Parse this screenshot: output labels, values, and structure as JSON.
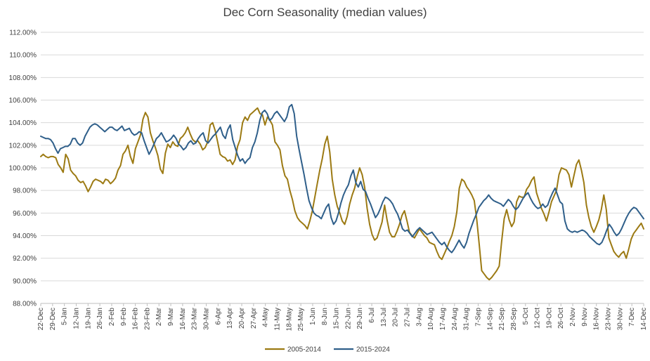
{
  "chart_data": {
    "type": "line",
    "title": "Dec Corn Seasonality (median values)",
    "xlabel": "",
    "ylabel": "",
    "ylim": [
      88,
      112
    ],
    "y_ticks": [
      "88.00%",
      "90.00%",
      "92.00%",
      "94.00%",
      "96.00%",
      "98.00%",
      "100.00%",
      "102.00%",
      "104.00%",
      "106.00%",
      "108.00%",
      "110.00%",
      "112.00%"
    ],
    "x_ticks": [
      "22-Dec",
      "29-Dec",
      "5-Jan",
      "12-Jan",
      "19-Jan",
      "26-Jan",
      "2-Feb",
      "9-Feb",
      "16-Feb",
      "23-Feb",
      "2-Mar",
      "9-Mar",
      "16-Mar",
      "23-Mar",
      "30-Mar",
      "6-Apr",
      "13-Apr",
      "20-Apr",
      "27-Apr",
      "4-May",
      "11-May",
      "18-May",
      "25-May",
      "1-Jun",
      "8-Jun",
      "15-Jun",
      "22-Jun",
      "29-Jun",
      "6-Jul",
      "13-Jul",
      "20-Jul",
      "27-Jul",
      "3-Aug",
      "10-Aug",
      "17-Aug",
      "24-Aug",
      "31-Aug",
      "7-Sep",
      "14-Sep",
      "21-Sep",
      "28-Sep",
      "5-Oct",
      "12-Oct",
      "19-Oct",
      "26-Oct",
      "2-Nov",
      "9-Nov",
      "16-Nov",
      "23-Nov",
      "30-Nov",
      "7-Dec",
      "14-Dec"
    ],
    "grid": true,
    "legend_position": "bottom",
    "series": [
      {
        "name": "2005-2014",
        "color": "#9C7A13",
        "values": [
          101.0,
          101.2,
          101.0,
          100.9,
          101.0,
          101.0,
          100.9,
          100.3,
          100.0,
          99.6,
          101.2,
          100.8,
          99.8,
          99.5,
          99.3,
          98.9,
          98.7,
          98.8,
          98.4,
          97.9,
          98.3,
          98.8,
          99.0,
          98.9,
          98.8,
          98.6,
          99.0,
          98.9,
          98.6,
          98.8,
          99.1,
          99.8,
          100.2,
          101.2,
          101.5,
          102.0,
          101.0,
          100.4,
          101.7,
          102.3,
          102.9,
          104.3,
          104.9,
          104.5,
          103.1,
          102.4,
          101.8,
          101.1,
          99.9,
          99.5,
          101.3,
          102.1,
          101.8,
          102.3,
          102.0,
          101.9,
          102.6,
          102.8,
          103.1,
          103.6,
          103.0,
          102.5,
          102.3,
          102.4,
          102.1,
          101.6,
          101.8,
          102.3,
          103.8,
          104.0,
          103.3,
          102.3,
          101.2,
          101.0,
          100.9,
          100.6,
          100.7,
          100.3,
          100.7,
          101.9,
          102.5,
          104.0,
          104.5,
          104.2,
          104.7,
          104.9,
          105.1,
          105.3,
          104.8,
          104.7,
          103.8,
          104.5,
          104.2,
          103.8,
          102.3,
          102.0,
          101.6,
          100.2,
          99.3,
          99.0,
          98.0,
          97.2,
          96.2,
          95.6,
          95.3,
          95.1,
          94.9,
          94.6,
          95.3,
          96.2,
          97.4,
          98.6,
          99.8,
          100.8,
          102.1,
          102.8,
          101.4,
          99.0,
          97.6,
          96.6,
          96.0,
          95.3,
          95.0,
          95.7,
          96.8,
          97.6,
          98.2,
          99.2,
          100.0,
          99.4,
          98.3,
          96.4,
          95.0,
          94.1,
          93.6,
          93.8,
          94.5,
          95.2,
          96.7,
          95.4,
          94.3,
          93.9,
          93.9,
          94.4,
          95.0,
          95.8,
          96.2,
          95.3,
          94.3,
          94.0,
          93.8,
          94.2,
          94.6,
          94.3,
          94.0,
          93.8,
          93.4,
          93.3,
          93.2,
          92.6,
          92.1,
          91.9,
          92.4,
          92.9,
          93.5,
          94.0,
          94.8,
          96.1,
          98.2,
          99.0,
          98.8,
          98.3,
          98.0,
          97.6,
          97.1,
          95.4,
          93.2,
          90.9,
          90.6,
          90.3,
          90.1,
          90.3,
          90.6,
          90.9,
          91.3,
          93.5,
          95.5,
          96.3,
          95.4,
          94.8,
          95.2,
          97.0,
          97.5,
          97.4,
          97.4,
          98.1,
          98.4,
          98.9,
          99.2,
          97.8,
          97.1,
          96.4,
          95.9,
          95.3,
          96.1,
          97.0,
          97.5,
          98.0,
          99.4,
          100.0,
          99.9,
          99.8,
          99.4,
          98.3,
          99.3,
          100.3,
          100.7,
          99.8,
          98.7,
          96.7,
          95.6,
          94.8,
          94.3,
          94.8,
          95.4,
          96.3,
          97.6,
          96.3,
          93.8,
          93.2,
          92.6,
          92.3,
          92.1,
          92.4,
          92.6,
          92.0,
          92.8,
          93.7,
          94.2,
          94.5,
          94.8,
          95.1,
          94.6
        ]
      },
      {
        "name": "2015-2024",
        "color": "#2F5F8A",
        "values": [
          102.8,
          102.7,
          102.6,
          102.6,
          102.5,
          102.2,
          101.7,
          101.3,
          101.7,
          101.8,
          101.9,
          101.9,
          102.1,
          102.6,
          102.6,
          102.2,
          102.0,
          102.2,
          102.8,
          103.2,
          103.6,
          103.8,
          103.9,
          103.8,
          103.6,
          103.4,
          103.2,
          103.4,
          103.6,
          103.6,
          103.4,
          103.3,
          103.5,
          103.7,
          103.3,
          103.4,
          103.5,
          103.1,
          102.9,
          103.0,
          103.2,
          103.1,
          102.4,
          101.8,
          101.2,
          101.6,
          102.1,
          102.6,
          102.8,
          103.1,
          102.7,
          102.3,
          102.4,
          102.6,
          102.9,
          102.6,
          102.1,
          101.9,
          101.6,
          101.8,
          102.2,
          102.4,
          102.1,
          102.2,
          102.6,
          102.9,
          103.1,
          102.4,
          102.2,
          102.5,
          102.8,
          103.0,
          103.3,
          103.6,
          102.9,
          102.6,
          103.4,
          103.8,
          102.5,
          101.8,
          101.1,
          100.6,
          100.8,
          100.4,
          100.7,
          100.9,
          101.8,
          102.3,
          103.1,
          104.2,
          104.9,
          105.1,
          104.8,
          104.2,
          104.4,
          104.8,
          105.0,
          104.7,
          104.4,
          104.1,
          104.5,
          105.4,
          105.6,
          104.8,
          102.8,
          101.6,
          100.5,
          99.4,
          98.2,
          97.1,
          96.5,
          96.0,
          95.8,
          95.7,
          95.5,
          96.0,
          96.5,
          96.8,
          95.6,
          95.0,
          95.3,
          96.0,
          96.9,
          97.6,
          98.1,
          98.5,
          99.3,
          99.8,
          98.7,
          98.3,
          98.8,
          98.1,
          97.9,
          97.3,
          96.8,
          96.2,
          95.6,
          95.9,
          96.4,
          97.0,
          97.4,
          97.3,
          97.1,
          96.8,
          96.3,
          95.9,
          95.3,
          94.6,
          94.4,
          94.5,
          94.2,
          93.9,
          94.2,
          94.5,
          94.7,
          94.5,
          94.3,
          94.1,
          94.2,
          94.3,
          94.0,
          93.7,
          93.4,
          93.2,
          93.4,
          93.0,
          92.7,
          92.5,
          92.8,
          93.2,
          93.6,
          93.2,
          92.9,
          93.4,
          94.2,
          94.8,
          95.4,
          95.9,
          96.5,
          96.8,
          97.1,
          97.3,
          97.6,
          97.3,
          97.1,
          97.0,
          96.9,
          96.8,
          96.6,
          96.9,
          97.2,
          97.0,
          96.6,
          96.3,
          96.5,
          96.9,
          97.3,
          97.6,
          97.8,
          97.3,
          96.9,
          96.6,
          96.4,
          96.5,
          96.8,
          96.5,
          96.7,
          97.3,
          97.8,
          98.2,
          97.6,
          97.0,
          96.8,
          95.3,
          94.6,
          94.4,
          94.3,
          94.4,
          94.3,
          94.4,
          94.5,
          94.4,
          94.2,
          93.9,
          93.7,
          93.5,
          93.3,
          93.2,
          93.4,
          93.9,
          94.5,
          95.0,
          94.7,
          94.3,
          94.0,
          94.2,
          94.6,
          95.1,
          95.6,
          96.0,
          96.3,
          96.5,
          96.4,
          96.1,
          95.8,
          95.5
        ]
      }
    ]
  }
}
